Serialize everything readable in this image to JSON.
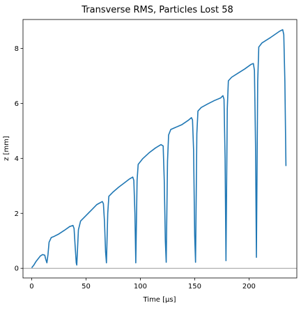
{
  "chart_data": {
    "type": "line",
    "title": "Transverse RMS, Particles Lost 58",
    "xlabel": "Time [μs]",
    "ylabel": "z [mm]",
    "xlim": [
      -8,
      244
    ],
    "ylim": [
      -0.35,
      9.05
    ],
    "xticks": [
      0,
      50,
      100,
      150,
      200
    ],
    "yticks": [
      0,
      2,
      4,
      6,
      8
    ],
    "grid": false,
    "legend": "none",
    "reference_line": {
      "y": 0,
      "color": "#8c8c8c"
    },
    "series": [
      {
        "color": "#1f77b4",
        "x": [
          0,
          2,
          4,
          6,
          8,
          10,
          12,
          13,
          14,
          15,
          16,
          18,
          20,
          25,
          30,
          35,
          38,
          39,
          40,
          41,
          41.5,
          43,
          45,
          50,
          55,
          60,
          65,
          66,
          67,
          68,
          68.8,
          70,
          71,
          75,
          80,
          85,
          90,
          93,
          94,
          95,
          95.8,
          97,
          98,
          102,
          108,
          114,
          119,
          121,
          122,
          123,
          123.8,
          125,
          126,
          128,
          132,
          138,
          144,
          147,
          148,
          149,
          150,
          150.8,
          152,
          153,
          156,
          162,
          168,
          174,
          176,
          177,
          178,
          178.8,
          180,
          181,
          184,
          190,
          196,
          202,
          204,
          205,
          206,
          206.8,
          208,
          209,
          212,
          220,
          228,
          231,
          232,
          233,
          234
        ],
        "y": [
          0.02,
          0.12,
          0.25,
          0.35,
          0.45,
          0.5,
          0.48,
          0.32,
          0.2,
          0.5,
          0.95,
          1.12,
          1.15,
          1.25,
          1.38,
          1.52,
          1.56,
          1.45,
          0.8,
          0.2,
          0.12,
          1.4,
          1.72,
          1.92,
          2.12,
          2.32,
          2.43,
          2.35,
          1.7,
          0.6,
          0.2,
          2.0,
          2.62,
          2.78,
          2.95,
          3.1,
          3.25,
          3.32,
          3.2,
          2.0,
          0.2,
          3.2,
          3.78,
          3.98,
          4.2,
          4.38,
          4.5,
          4.45,
          3.2,
          1.0,
          0.22,
          3.9,
          4.85,
          5.05,
          5.12,
          5.22,
          5.38,
          5.48,
          5.4,
          4.3,
          1.2,
          0.22,
          4.9,
          5.72,
          5.85,
          5.98,
          6.1,
          6.2,
          6.28,
          6.15,
          4.0,
          0.28,
          5.8,
          6.82,
          6.95,
          7.1,
          7.25,
          7.42,
          7.45,
          7.2,
          4.5,
          0.4,
          6.8,
          8.05,
          8.2,
          8.4,
          8.62,
          8.68,
          8.5,
          6.8,
          3.72
        ]
      }
    ]
  }
}
